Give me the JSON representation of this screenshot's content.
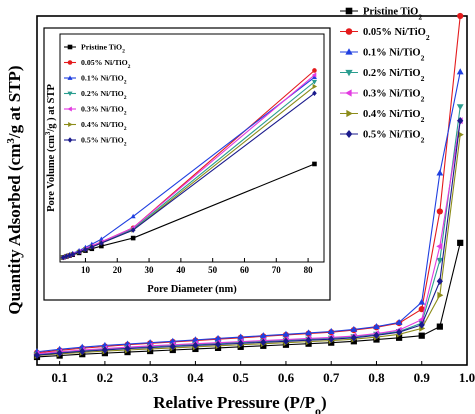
{
  "chart_data": [
    {
      "type": "line",
      "xlabel_main": "Relative Pressure (P/P",
      "xlabel_sub": "o",
      "xlabel_end": ")",
      "ylabel_main": "Quantity Adsorbed (cm",
      "ylabel_sup": "3",
      "ylabel_end": "/g at STP)",
      "xlim": [
        0.05,
        1.0
      ],
      "ylim": [
        0,
        1
      ],
      "x_ticks": [
        "0.1",
        "0.2",
        "0.3",
        "0.4",
        "0.5",
        "0.6",
        "0.7",
        "0.8",
        "0.9",
        "1.0"
      ],
      "grid": false,
      "legend_position": "right",
      "series": [
        {
          "name": "Pristine TiO",
          "name_sub": "2",
          "color": "#000000",
          "marker": "square",
          "x": [
            0.05,
            0.1,
            0.15,
            0.2,
            0.25,
            0.3,
            0.35,
            0.4,
            0.45,
            0.5,
            0.55,
            0.6,
            0.65,
            0.7,
            0.75,
            0.8,
            0.85,
            0.9,
            0.94,
            0.985
          ],
          "y": [
            0.023,
            0.027,
            0.031,
            0.034,
            0.037,
            0.04,
            0.043,
            0.046,
            0.049,
            0.052,
            0.055,
            0.058,
            0.061,
            0.064,
            0.068,
            0.073,
            0.078,
            0.084,
            0.11,
            0.35
          ]
        },
        {
          "name": "0.05% Ni/TiO",
          "name_sub": "2",
          "color": "#e41a1c",
          "marker": "circle",
          "x": [
            0.05,
            0.1,
            0.15,
            0.2,
            0.25,
            0.3,
            0.35,
            0.4,
            0.45,
            0.5,
            0.55,
            0.6,
            0.65,
            0.7,
            0.75,
            0.8,
            0.85,
            0.9,
            0.94,
            0.985
          ],
          "y": [
            0.035,
            0.042,
            0.048,
            0.053,
            0.058,
            0.062,
            0.066,
            0.07,
            0.074,
            0.078,
            0.082,
            0.086,
            0.09,
            0.094,
            0.1,
            0.108,
            0.12,
            0.16,
            0.44,
            1.0
          ]
        },
        {
          "name": "0.1% Ni/TiO",
          "name_sub": "2",
          "color": "#1f3fe0",
          "marker": "triangle-up",
          "x": [
            0.05,
            0.1,
            0.15,
            0.2,
            0.25,
            0.3,
            0.35,
            0.4,
            0.45,
            0.5,
            0.55,
            0.6,
            0.65,
            0.7,
            0.75,
            0.8,
            0.85,
            0.9,
            0.94,
            0.985
          ],
          "y": [
            0.038,
            0.045,
            0.051,
            0.056,
            0.06,
            0.064,
            0.068,
            0.072,
            0.076,
            0.08,
            0.084,
            0.088,
            0.092,
            0.096,
            0.102,
            0.11,
            0.122,
            0.18,
            0.55,
            0.84
          ]
        },
        {
          "name": "0.2% Ni/TiO",
          "name_sub": "2",
          "color": "#2a9d8f",
          "marker": "triangle-down",
          "x": [
            0.05,
            0.1,
            0.15,
            0.2,
            0.25,
            0.3,
            0.35,
            0.4,
            0.45,
            0.5,
            0.55,
            0.6,
            0.65,
            0.7,
            0.75,
            0.8,
            0.85,
            0.9,
            0.94,
            0.985
          ],
          "y": [
            0.03,
            0.036,
            0.041,
            0.045,
            0.049,
            0.053,
            0.056,
            0.059,
            0.062,
            0.065,
            0.068,
            0.071,
            0.074,
            0.077,
            0.081,
            0.088,
            0.096,
            0.12,
            0.3,
            0.74
          ]
        },
        {
          "name": "0.3% Ni/TiO",
          "name_sub": "2",
          "color": "#e23ae0",
          "marker": "triangle-left",
          "x": [
            0.05,
            0.1,
            0.15,
            0.2,
            0.25,
            0.3,
            0.35,
            0.4,
            0.45,
            0.5,
            0.55,
            0.6,
            0.65,
            0.7,
            0.75,
            0.8,
            0.85,
            0.9,
            0.94,
            0.985
          ],
          "y": [
            0.032,
            0.038,
            0.043,
            0.047,
            0.051,
            0.055,
            0.058,
            0.061,
            0.064,
            0.067,
            0.07,
            0.073,
            0.076,
            0.079,
            0.083,
            0.09,
            0.1,
            0.13,
            0.34,
            0.7
          ]
        },
        {
          "name": "0.4% Ni/TiO",
          "name_sub": "2",
          "color": "#8c8c1a",
          "marker": "triangle-right",
          "x": [
            0.05,
            0.1,
            0.15,
            0.2,
            0.25,
            0.3,
            0.35,
            0.4,
            0.45,
            0.5,
            0.55,
            0.6,
            0.65,
            0.7,
            0.75,
            0.8,
            0.85,
            0.9,
            0.94,
            0.985
          ],
          "y": [
            0.027,
            0.032,
            0.036,
            0.04,
            0.043,
            0.046,
            0.049,
            0.052,
            0.055,
            0.058,
            0.061,
            0.064,
            0.067,
            0.07,
            0.074,
            0.08,
            0.088,
            0.105,
            0.2,
            0.66
          ]
        },
        {
          "name": "0.5% Ni/TiO",
          "name_sub": "2",
          "color": "#1a1a8c",
          "marker": "diamond",
          "x": [
            0.05,
            0.1,
            0.15,
            0.2,
            0.25,
            0.3,
            0.35,
            0.4,
            0.45,
            0.5,
            0.55,
            0.6,
            0.65,
            0.7,
            0.75,
            0.8,
            0.85,
            0.9,
            0.94,
            0.985
          ],
          "y": [
            0.028,
            0.034,
            0.039,
            0.043,
            0.047,
            0.05,
            0.053,
            0.056,
            0.059,
            0.062,
            0.065,
            0.068,
            0.071,
            0.074,
            0.078,
            0.085,
            0.094,
            0.115,
            0.24,
            0.7
          ]
        }
      ]
    },
    {
      "type": "line",
      "inset": true,
      "xlabel": "Pore Diameter (nm)",
      "ylabel_main": "Pore Volume (cm",
      "ylabel_sup": "3",
      "ylabel_end": "/g ) at STP",
      "xlim": [
        2,
        85
      ],
      "ylim": [
        0,
        1
      ],
      "x_ticks": [
        "10",
        "20",
        "30",
        "40",
        "50",
        "60",
        "70",
        "80"
      ],
      "x_tick_values": [
        10,
        20,
        30,
        40,
        50,
        60,
        70,
        80
      ],
      "legend_position": "top-left",
      "series": [
        {
          "name": "Pristine TiO",
          "name_sub": "2",
          "color": "#000000",
          "marker": "square",
          "x": [
            3,
            4,
            5,
            6,
            8,
            10,
            12,
            15,
            25,
            82
          ],
          "y": [
            0.02,
            0.024,
            0.028,
            0.032,
            0.04,
            0.05,
            0.058,
            0.07,
            0.105,
            0.43
          ]
        },
        {
          "name": "0.05% Ni/TiO",
          "name_sub": "2",
          "color": "#e41a1c",
          "marker": "circle",
          "x": [
            3,
            4,
            5,
            6,
            8,
            10,
            12,
            15,
            25,
            82
          ],
          "y": [
            0.02,
            0.026,
            0.03,
            0.035,
            0.045,
            0.058,
            0.07,
            0.088,
            0.15,
            0.84
          ]
        },
        {
          "name": "0.1% Ni/TiO",
          "name_sub": "2",
          "color": "#1f3fe0",
          "marker": "triangle-up",
          "x": [
            3,
            4,
            5,
            6,
            8,
            10,
            12,
            15,
            25,
            82
          ],
          "y": [
            0.02,
            0.027,
            0.032,
            0.038,
            0.05,
            0.064,
            0.078,
            0.1,
            0.2,
            0.81
          ]
        },
        {
          "name": "0.2% Ni/TiO",
          "name_sub": "2",
          "color": "#2a9d8f",
          "marker": "triangle-down",
          "x": [
            3,
            4,
            5,
            6,
            8,
            10,
            12,
            15,
            25,
            82
          ],
          "y": [
            0.02,
            0.025,
            0.029,
            0.034,
            0.044,
            0.056,
            0.068,
            0.085,
            0.145,
            0.79
          ]
        },
        {
          "name": "0.3% Ni/TiO",
          "name_sub": "2",
          "color": "#e23ae0",
          "marker": "triangle-left",
          "x": [
            3,
            4,
            5,
            6,
            8,
            10,
            12,
            15,
            25,
            82
          ],
          "y": [
            0.02,
            0.026,
            0.03,
            0.035,
            0.046,
            0.058,
            0.07,
            0.088,
            0.15,
            0.82
          ]
        },
        {
          "name": "0.4% Ni/TiO",
          "name_sub": "2",
          "color": "#8c8c1a",
          "marker": "triangle-right",
          "x": [
            3,
            4,
            5,
            6,
            8,
            10,
            12,
            15,
            25,
            82
          ],
          "y": [
            0.02,
            0.025,
            0.029,
            0.034,
            0.044,
            0.055,
            0.066,
            0.083,
            0.14,
            0.77
          ]
        },
        {
          "name": "0.5% Ni/TiO",
          "name_sub": "2",
          "color": "#1a1a8c",
          "marker": "diamond",
          "x": [
            3,
            4,
            5,
            6,
            8,
            10,
            12,
            15,
            25,
            82
          ],
          "y": [
            0.02,
            0.025,
            0.029,
            0.034,
            0.044,
            0.055,
            0.066,
            0.083,
            0.14,
            0.74
          ]
        }
      ]
    }
  ]
}
